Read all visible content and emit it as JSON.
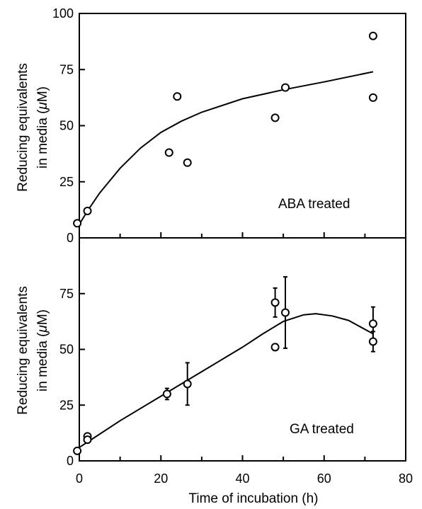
{
  "chart_data": [
    {
      "type": "scatter",
      "panel": "top",
      "ylabel_line1": "Reducing equivalents",
      "ylabel_line2_prefix": "in media (",
      "ylabel_mu": "μ",
      "ylabel_line2_suffix": "M)",
      "annotation": "ABA treated",
      "ylim": [
        0,
        100
      ],
      "yticks": [
        "0",
        "25",
        "50",
        "75",
        "100"
      ],
      "xlim": [
        0,
        80
      ],
      "points": [
        {
          "x": -0.5,
          "y": 6.5
        },
        {
          "x": 2,
          "y": 12
        },
        {
          "x": 22,
          "y": 38
        },
        {
          "x": 24,
          "y": 63
        },
        {
          "x": 26.5,
          "y": 33.5
        },
        {
          "x": 48,
          "y": 53.5
        },
        {
          "x": 50.5,
          "y": 67
        },
        {
          "x": 72,
          "y": 90
        },
        {
          "x": 72,
          "y": 62.5
        }
      ],
      "fit_curve": [
        {
          "x": 0,
          "y": 6
        },
        {
          "x": 2,
          "y": 12
        },
        {
          "x": 5,
          "y": 20
        },
        {
          "x": 10,
          "y": 31
        },
        {
          "x": 15,
          "y": 40
        },
        {
          "x": 20,
          "y": 47
        },
        {
          "x": 25,
          "y": 52
        },
        {
          "x": 30,
          "y": 56
        },
        {
          "x": 40,
          "y": 62
        },
        {
          "x": 50,
          "y": 66
        },
        {
          "x": 60,
          "y": 69.5
        },
        {
          "x": 72,
          "y": 74
        }
      ]
    },
    {
      "type": "scatter",
      "panel": "bottom",
      "ylabel_line1": "Reducing equivalents",
      "ylabel_line2_prefix": "in media (",
      "ylabel_mu": "μ",
      "ylabel_line2_suffix": "M)",
      "annotation": "GA treated",
      "ylim": [
        0,
        100
      ],
      "yticks": [
        "0",
        "25",
        "50",
        "75"
      ],
      "xlim": [
        0,
        80
      ],
      "xticks": [
        "0",
        "20",
        "40",
        "60",
        "80"
      ],
      "xlabel": "Time of incubation (h)",
      "points": [
        {
          "x": -0.5,
          "y": 4.5,
          "err": 0
        },
        {
          "x": 2,
          "y": 11,
          "err": 0
        },
        {
          "x": 2,
          "y": 9.5,
          "err": 0
        },
        {
          "x": 21.5,
          "y": 30,
          "err": 2.5
        },
        {
          "x": 26.5,
          "y": 34.5,
          "err": 9.5
        },
        {
          "x": 48,
          "y": 71,
          "err": 6.5
        },
        {
          "x": 48,
          "y": 51,
          "err": 1.5
        },
        {
          "x": 50.5,
          "y": 66.5,
          "err": 16
        },
        {
          "x": 72,
          "y": 61.5,
          "err": 7.5
        },
        {
          "x": 72,
          "y": 53.5,
          "err": 4.5
        }
      ],
      "fit_curve": [
        {
          "x": 0,
          "y": 6
        },
        {
          "x": 10,
          "y": 18
        },
        {
          "x": 20,
          "y": 29
        },
        {
          "x": 30,
          "y": 40
        },
        {
          "x": 40,
          "y": 51
        },
        {
          "x": 45,
          "y": 57
        },
        {
          "x": 50,
          "y": 62.5
        },
        {
          "x": 55,
          "y": 65.5
        },
        {
          "x": 58,
          "y": 66
        },
        {
          "x": 62,
          "y": 65
        },
        {
          "x": 66,
          "y": 63
        },
        {
          "x": 72,
          "y": 57
        }
      ]
    }
  ]
}
